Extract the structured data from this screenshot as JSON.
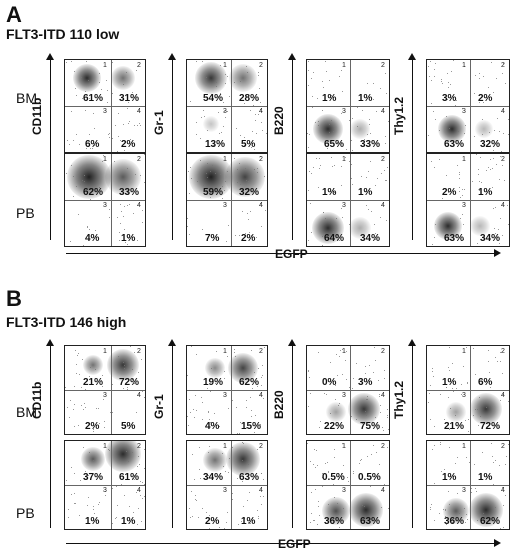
{
  "panels": [
    {
      "letter": "A",
      "title": "FLT3-ITD 110 low",
      "rows": [
        "BM",
        "PB"
      ],
      "x_axis_label": "EGFP",
      "markers": [
        "CD11b",
        "Gr-1",
        "B220",
        "Thy1.2"
      ],
      "quadrant_numbers": [
        "1",
        "2",
        "3",
        "4"
      ],
      "plots": [
        [
          {
            "q1": "61%",
            "q2": "31%",
            "q3": "6%",
            "q4": "2%"
          },
          {
            "q1": "54%",
            "q2": "28%",
            "q3": "13%",
            "q4": "5%"
          },
          {
            "q1": "1%",
            "q2": "1%",
            "q3": "65%",
            "q4": "33%"
          },
          {
            "q1": "3%",
            "q2": "2%",
            "q3": "63%",
            "q4": "32%"
          }
        ],
        [
          {
            "q1": "62%",
            "q2": "33%",
            "q3": "4%",
            "q4": "1%"
          },
          {
            "q1": "59%",
            "q2": "32%",
            "q3": "7%",
            "q4": "2%"
          },
          {
            "q1": "1%",
            "q2": "1%",
            "q3": "64%",
            "q4": "34%"
          },
          {
            "q1": "2%",
            "q2": "1%",
            "q3": "63%",
            "q4": "34%"
          }
        ]
      ]
    },
    {
      "letter": "B",
      "title": "FLT3-ITD 146 high",
      "rows": [
        "BM",
        "PB"
      ],
      "x_axis_label": "EGFP",
      "markers": [
        "CD11b",
        "Gr-1",
        "B220",
        "Thy1.2"
      ],
      "quadrant_numbers": [
        "1",
        "2",
        "3",
        "4"
      ],
      "plots": [
        [
          {
            "q1": "21%",
            "q2": "72%",
            "q3": "2%",
            "q4": "5%"
          },
          {
            "q1": "19%",
            "q2": "62%",
            "q3": "4%",
            "q4": "15%"
          },
          {
            "q1": "0%",
            "q2": "3%",
            "q3": "22%",
            "q4": "75%"
          },
          {
            "q1": "1%",
            "q2": "6%",
            "q3": "21%",
            "q4": "72%"
          }
        ],
        [
          {
            "q1": "37%",
            "q2": "61%",
            "q3": "1%",
            "q4": "1%"
          },
          {
            "q1": "34%",
            "q2": "63%",
            "q3": "2%",
            "q4": "1%"
          },
          {
            "q1": "0.5%",
            "q2": "0.5%",
            "q3": "36%",
            "q4": "63%"
          },
          {
            "q1": "1%",
            "q2": "1%",
            "q3": "36%",
            "q4": "62%"
          }
        ]
      ]
    }
  ]
}
